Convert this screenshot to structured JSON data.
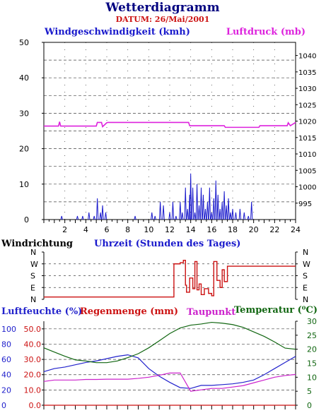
{
  "header": {
    "title": "Wetterdiagramm",
    "date": "DATUM: 26/Mai/2001"
  },
  "colors": {
    "wind": "#1a1acc",
    "pressure": "#dd22dd",
    "direction": "#cc1111",
    "humidity": "#2222cc",
    "rain": "#cc1111",
    "dewpoint": "#cc22cc",
    "temperature": "#116611",
    "frame": "#000000",
    "grid": "#444444"
  },
  "chart_data": [
    {
      "type": "line",
      "xlabel": "Uhrzeit (Stunden des Tages)",
      "xlim": [
        0,
        24
      ],
      "xticks": [
        "2",
        "4",
        "6",
        "8",
        "10",
        "12",
        "14",
        "16",
        "18",
        "20",
        "22",
        "24"
      ],
      "ylabel_left": "Windgeschwindigkeit (kmh)",
      "ylim_left": [
        0,
        50
      ],
      "yticks_left": [
        "0",
        "10",
        "20",
        "30",
        "40",
        "50"
      ],
      "ylabel_right": "Luftdruck (mb)",
      "ylim_right": [
        990,
        1044
      ],
      "yticks_right": [
        "995",
        "1000",
        "1005",
        "1010",
        "1015",
        "1020",
        "1025",
        "1030",
        "1035",
        "1040"
      ],
      "series": [
        {
          "name": "Windgeschwindigkeit (kmh)",
          "axis": "left",
          "style": "spikes",
          "x": [
            1.7,
            3.2,
            3.7,
            4.3,
            4.8,
            5.1,
            5.4,
            5.6,
            5.9,
            8.7,
            10.3,
            10.6,
            11.1,
            11.4,
            12.0,
            12.3,
            12.6,
            13.0,
            13.2,
            13.5,
            13.7,
            13.9,
            14.0,
            14.2,
            14.4,
            14.6,
            14.8,
            15.0,
            15.2,
            15.4,
            15.6,
            15.8,
            16.0,
            16.2,
            16.4,
            16.6,
            16.8,
            17.0,
            17.2,
            17.4,
            17.6,
            17.8,
            18.0,
            18.3,
            18.7,
            19.1,
            19.5,
            19.8
          ],
          "values": [
            1,
            1,
            1,
            2,
            1,
            6,
            2,
            4,
            2,
            1,
            2,
            1,
            5,
            4,
            2,
            5,
            1,
            5,
            2,
            9,
            3,
            7,
            13,
            9,
            2,
            10,
            4,
            9,
            7,
            3,
            5,
            9,
            2,
            6,
            11,
            7,
            3,
            5,
            8,
            4,
            6,
            2,
            3,
            2,
            3,
            2,
            1,
            5
          ]
        },
        {
          "name": "Luftdruck (mb)",
          "axis": "right",
          "x": [
            0,
            1.4,
            1.5,
            1.6,
            1.7,
            5.0,
            5.1,
            5.5,
            5.6,
            6.0,
            6.1,
            12.0,
            13.8,
            13.9,
            17.2,
            17.3,
            20.5,
            20.6,
            23.2,
            23.3,
            23.5,
            24.0
          ],
          "values": [
            1018.5,
            1018.5,
            1019.8,
            1018.5,
            1018.5,
            1018.5,
            1019.6,
            1019.6,
            1018.3,
            1019.5,
            1019.6,
            1019.6,
            1019.6,
            1018.6,
            1018.6,
            1018.1,
            1018.1,
            1018.6,
            1018.6,
            1019.5,
            1018.6,
            1019.6
          ]
        }
      ]
    },
    {
      "type": "line",
      "ylabel": "Windrichtung",
      "xlim": [
        0,
        24
      ],
      "yticks": [
        "N",
        "W",
        "S",
        "E",
        "N"
      ],
      "series": [
        {
          "name": "Windrichtung",
          "x": [
            0,
            12.3,
            12.4,
            13.0,
            13.3,
            13.5,
            13.6,
            13.9,
            14.2,
            14.4,
            14.6,
            14.8,
            15.0,
            15.3,
            15.7,
            16.0,
            16.2,
            16.5,
            16.8,
            17.0,
            17.2,
            17.5,
            18.0,
            24.0
          ],
          "values": [
            0.2,
            0.2,
            3.0,
            3.1,
            3.3,
            1.2,
            0.6,
            1.8,
            0.9,
            3.2,
            0.8,
            1.3,
            0.4,
            0.9,
            0.5,
            0.3,
            3.2,
            1.6,
            1.0,
            2.5,
            1.5,
            2.8,
            2.8,
            2.8
          ]
        }
      ]
    },
    {
      "type": "line",
      "xlim": [
        0,
        24
      ],
      "ylabel_left": "Luftfeuchte (%)",
      "ylim_left": [
        0,
        110
      ],
      "yticks_left": [
        "0",
        "20",
        "40",
        "60",
        "80",
        "100"
      ],
      "ylabel_rain": "Regenmenge (mm)",
      "yticks_rain": [
        "0.0",
        "10.0",
        "20.0",
        "30.0",
        "40.0",
        "50.0"
      ],
      "ylabel_right": "Taupunkt",
      "ylabel_right2": "Temperatur (⁰C)",
      "ylim_right": [
        0,
        30
      ],
      "yticks_right": [
        "0",
        "5",
        "10",
        "15",
        "20",
        "25",
        "30"
      ],
      "series": [
        {
          "name": "Luftfeuchte (%)",
          "axis": "left",
          "x": [
            0,
            1,
            2,
            3,
            4,
            5,
            6,
            7,
            8,
            9,
            10,
            11,
            12,
            13,
            14,
            15,
            16,
            17,
            18,
            19,
            20,
            21,
            22,
            23,
            24
          ],
          "values": [
            44,
            48,
            50,
            53,
            56,
            58,
            61,
            64,
            66,
            62,
            48,
            38,
            30,
            23,
            22,
            26,
            26,
            27,
            28,
            30,
            33,
            40,
            48,
            56,
            64
          ]
        },
        {
          "name": "Taupunkt",
          "axis": "right",
          "x": [
            0,
            1,
            2,
            3,
            4,
            5,
            6,
            7,
            8,
            9,
            10,
            11,
            12,
            13,
            14,
            15,
            16,
            17,
            18,
            19,
            20,
            21,
            22,
            23,
            24
          ],
          "values": [
            8.5,
            9,
            9,
            9,
            9.2,
            9.2,
            9.3,
            9.3,
            9.3,
            9.6,
            10,
            10.7,
            11.5,
            11.5,
            5,
            5.5,
            6,
            6,
            6.5,
            7,
            8,
            9,
            10,
            10.6,
            11
          ]
        },
        {
          "name": "Temperatur (⁰C)",
          "axis": "right",
          "x": [
            0,
            1,
            2,
            3,
            4,
            5,
            6,
            7,
            8,
            9,
            10,
            11,
            12,
            13,
            14,
            15,
            16,
            17,
            18,
            19,
            20,
            21,
            22,
            23,
            24
          ],
          "values": [
            20.5,
            19,
            17.5,
            16.2,
            15.8,
            15.2,
            15.2,
            15.8,
            17.0,
            18.4,
            20.5,
            23.0,
            25.6,
            27.6,
            28.6,
            29.0,
            29.6,
            29.3,
            28.8,
            27.8,
            26.2,
            24.6,
            22.6,
            20.4,
            20.0
          ]
        },
        {
          "name": "Regenmenge (mm)",
          "axis": "rain",
          "x": [
            0,
            24
          ],
          "values": [
            0,
            0
          ]
        }
      ]
    }
  ]
}
